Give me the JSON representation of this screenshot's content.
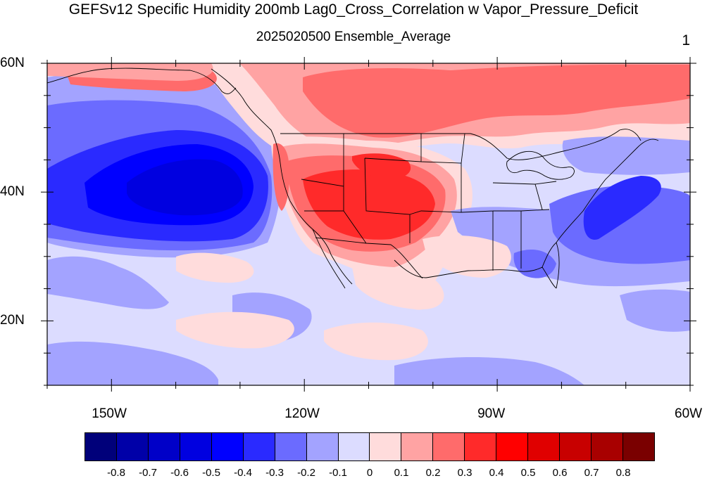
{
  "title": "GEFSv12 Specific Humidity 200mb Lag0_Cross_Correlation w Vapor_Pressure_Deficit",
  "subtitle": "2025020500 Ensemble_Average",
  "member_label": "1",
  "map": {
    "lon_range": [
      -160,
      -60
    ],
    "lat_range": [
      10,
      60
    ],
    "lat_ticks": [
      {
        "value": 60,
        "label": "60N"
      },
      {
        "value": 40,
        "label": "40N"
      },
      {
        "value": 20,
        "label": "20N"
      }
    ],
    "lon_ticks": [
      {
        "value": -150,
        "label": "150W"
      },
      {
        "value": -120,
        "label": "120W"
      },
      {
        "value": -90,
        "label": "90W"
      },
      {
        "value": -60,
        "label": "60W"
      }
    ],
    "features": [
      {
        "name": "northeast-pacific-negative-core",
        "lon": -141,
        "lat": 41,
        "value": -0.6
      },
      {
        "name": "great-basin-positive-core",
        "lon": -110,
        "lat": 40,
        "value": 0.4
      },
      {
        "name": "canada-positive-band",
        "lon": -95,
        "lat": 53,
        "value": 0.3
      },
      {
        "name": "us-east-coast-negative-band",
        "lon": -74,
        "lat": 38,
        "value": -0.4
      },
      {
        "name": "southeast-us-weak-negative",
        "lon": -85,
        "lat": 33,
        "value": -0.1
      }
    ]
  },
  "colorbar": {
    "levels": [
      -0.8,
      -0.7,
      -0.6,
      -0.5,
      -0.4,
      -0.3,
      -0.2,
      -0.1,
      0,
      0.1,
      0.2,
      0.3,
      0.4,
      0.5,
      0.6,
      0.7,
      0.8
    ],
    "labels": [
      "-0.8",
      "-0.7",
      "-0.6",
      "-0.5",
      "-0.4",
      "-0.3",
      "-0.2",
      "-0.1",
      "0",
      "0.1",
      "0.2",
      "0.3",
      "0.4",
      "0.5",
      "0.6",
      "0.7",
      "0.8"
    ],
    "colors": [
      "#00007a",
      "#0000a8",
      "#0000c8",
      "#0000e0",
      "#0000ff",
      "#2a2aff",
      "#6b6bff",
      "#a3a3ff",
      "#dcdcff",
      "#ffdcdc",
      "#ffa3a3",
      "#ff6b6b",
      "#ff2a2a",
      "#ff0000",
      "#e00000",
      "#c80000",
      "#a80000",
      "#7a0000"
    ]
  }
}
